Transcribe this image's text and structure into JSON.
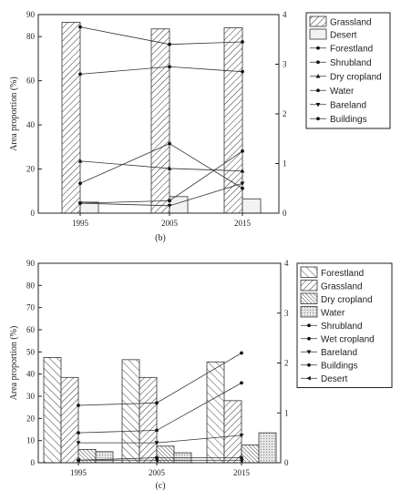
{
  "chart_data": [
    {
      "type": "bar",
      "panel_label": "(b)",
      "categories": [
        "1995",
        "2005",
        "2015"
      ],
      "ylabel": "Area proportion (%)",
      "ylim": [
        0,
        90
      ],
      "yticks": [
        0,
        20,
        40,
        60,
        80,
        90
      ],
      "y2lim": [
        0,
        4
      ],
      "y2ticks": [
        0,
        1,
        2,
        3,
        4
      ],
      "grid": false,
      "legend_position": "right",
      "bar_series": [
        {
          "name": "Grassland",
          "values": [
            86.5,
            83.5,
            84.0
          ],
          "pattern": "diag"
        },
        {
          "name": "Desert",
          "values": [
            5.0,
            7.5,
            6.5
          ],
          "pattern": "light"
        }
      ],
      "line_series": [
        {
          "name": "Forestland",
          "values": [
            3.75,
            3.4,
            3.45
          ],
          "marker": "dot"
        },
        {
          "name": "Shrubland",
          "values": [
            2.8,
            2.95,
            2.85
          ],
          "marker": "dot"
        },
        {
          "name": "Dry cropland",
          "values": [
            1.05,
            0.9,
            0.85
          ],
          "marker": "tri-up"
        },
        {
          "name": "Water",
          "values": [
            0.6,
            1.4,
            0.5
          ],
          "marker": "dot"
        },
        {
          "name": "Bareland",
          "values": [
            0.2,
            0.15,
            0.6
          ],
          "marker": "tri-down"
        },
        {
          "name": "Buildings",
          "values": [
            0.2,
            0.25,
            1.25
          ],
          "marker": "dot"
        }
      ]
    },
    {
      "type": "bar",
      "panel_label": "(c)",
      "categories": [
        "1995",
        "2005",
        "2015"
      ],
      "ylabel": "Area proportion (%)",
      "ylim": [
        0,
        90
      ],
      "yticks": [
        0,
        10,
        20,
        30,
        40,
        50,
        60,
        70,
        80,
        90
      ],
      "y2lim": [
        0,
        4
      ],
      "y2ticks": [
        0,
        1,
        2,
        3,
        4
      ],
      "grid": false,
      "legend_position": "right",
      "bar_series": [
        {
          "name": "Forestland",
          "values": [
            47.5,
            46.5,
            45.5
          ],
          "pattern": "hatch"
        },
        {
          "name": "Grassland",
          "values": [
            38.5,
            38.5,
            28.0
          ],
          "pattern": "diag"
        },
        {
          "name": "Dry cropland",
          "values": [
            6.0,
            7.5,
            8.0
          ],
          "pattern": "dense"
        },
        {
          "name": "Water",
          "values": [
            5.0,
            4.5,
            13.5
          ],
          "pattern": "dots"
        }
      ],
      "line_series": [
        {
          "name": "Shrubland",
          "values": [
            1.15,
            1.2,
            2.2
          ],
          "marker": "dot"
        },
        {
          "name": "Wet cropland",
          "values": [
            0.6,
            0.65,
            1.6
          ],
          "marker": "dot"
        },
        {
          "name": "Bareland",
          "values": [
            0.4,
            0.4,
            0.55
          ],
          "marker": "tri-down"
        },
        {
          "name": "Buildings",
          "values": [
            0.05,
            0.1,
            0.1
          ],
          "marker": "dot"
        },
        {
          "name": "Desert",
          "values": [
            0.05,
            0.05,
            0.05
          ],
          "marker": "tri-left"
        }
      ]
    }
  ]
}
